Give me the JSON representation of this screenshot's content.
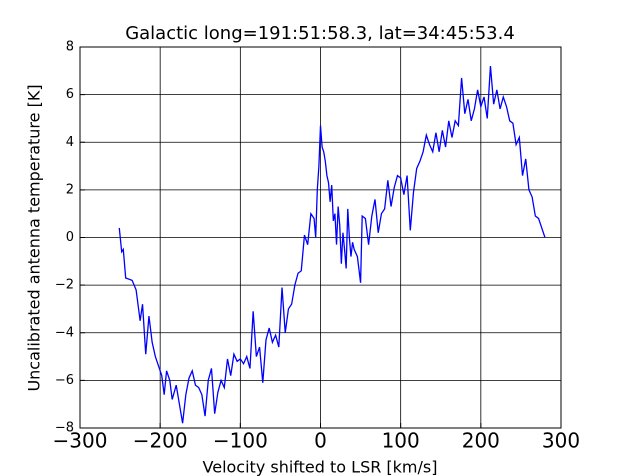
{
  "chart_data": {
    "type": "line",
    "title": "Galactic long=191:51:58.3, lat=34:45:53.4",
    "x_label": "Velocity shifted to LSR [km/s]",
    "y_label": "Uncalibrated antenna temperature [K]",
    "xlim": [
      -300,
      300
    ],
    "ylim": [
      -8,
      8
    ],
    "xticks": [
      {
        "value": -300,
        "label": "−300"
      },
      {
        "value": -200,
        "label": "−200"
      },
      {
        "value": -100,
        "label": "−100"
      },
      0,
      100,
      200,
      300
    ],
    "yticks": [
      {
        "value": -8,
        "label": "−8"
      },
      {
        "value": -6,
        "label": "−6"
      },
      {
        "value": -4,
        "label": "−4"
      },
      {
        "value": -2,
        "label": "−2"
      },
      0,
      2,
      4,
      6,
      8
    ],
    "grid": true,
    "series": [
      {
        "color": "#0000ff",
        "x": [
          -251,
          -248,
          -246,
          -243,
          -235,
          -230,
          -225,
          -222,
          -218,
          -214,
          -210,
          -206,
          -202,
          -198,
          -195,
          -192,
          -188,
          -185,
          -180,
          -176,
          -172,
          -168,
          -164,
          -160,
          -156,
          -152,
          -148,
          -144,
          -140,
          -136,
          -132,
          -128,
          -124,
          -120,
          -116,
          -112,
          -108,
          -104,
          -100,
          -96,
          -92,
          -88,
          -84,
          -80,
          -76,
          -72,
          -68,
          -64,
          -60,
          -56,
          -52,
          -48,
          -44,
          -40,
          -36,
          -32,
          -28,
          -24,
          -20,
          -16,
          -12,
          -8,
          -6,
          -4,
          -2,
          0,
          2,
          4,
          6,
          8,
          10,
          12,
          14,
          16,
          18,
          20,
          22,
          24,
          26,
          28,
          30,
          32,
          34,
          36,
          38,
          40,
          42,
          46,
          50,
          52,
          56,
          60,
          64,
          68,
          72,
          76,
          80,
          84,
          88,
          92,
          96,
          100,
          104,
          108,
          112,
          116,
          120,
          124,
          128,
          132,
          136,
          140,
          144,
          148,
          152,
          156,
          160,
          164,
          168,
          172,
          176,
          180,
          184,
          188,
          192,
          196,
          200,
          204,
          208,
          212,
          216,
          220,
          224,
          228,
          232,
          236,
          240,
          244,
          248,
          252,
          256,
          260,
          264,
          268,
          272,
          276,
          280
        ],
        "values": [
          0.4,
          -0.6,
          -0.5,
          -1.7,
          -1.8,
          -2.2,
          -3.5,
          -2.8,
          -4.9,
          -3.3,
          -4.4,
          -5.0,
          -5.4,
          -5.8,
          -6.6,
          -5.6,
          -6.0,
          -6.8,
          -6.2,
          -7.0,
          -7.8,
          -6.6,
          -5.9,
          -5.6,
          -6.2,
          -6.3,
          -6.6,
          -7.5,
          -6.0,
          -5.5,
          -7.4,
          -6.5,
          -6.0,
          -6.3,
          -5.1,
          -5.8,
          -4.9,
          -5.2,
          -5.1,
          -5.3,
          -5.0,
          -5.5,
          -3.1,
          -5.0,
          -4.6,
          -6.1,
          -4.3,
          -3.8,
          -4.4,
          -4.1,
          -4.6,
          -2.1,
          -4.0,
          -3.0,
          -2.8,
          -2.0,
          -1.5,
          -1.4,
          0.1,
          -0.3,
          1.0,
          0.8,
          0.0,
          2.0,
          3.0,
          4.7,
          3.8,
          3.6,
          3.2,
          2.6,
          2.3,
          1.5,
          2.2,
          0.7,
          1.0,
          -0.3,
          1.3,
          0.5,
          -1.1,
          0.2,
          -0.5,
          -1.3,
          1.2,
          0.0,
          -0.8,
          -0.2,
          -0.5,
          -0.8,
          -1.9,
          0.9,
          0.8,
          -0.3,
          0.9,
          1.6,
          0.2,
          1.0,
          1.2,
          2.4,
          1.3,
          2.1,
          2.6,
          2.5,
          1.8,
          2.6,
          0.3,
          1.9,
          2.9,
          3.2,
          3.6,
          4.3,
          3.9,
          3.6,
          4.4,
          3.6,
          4.5,
          3.8,
          4.9,
          4.2,
          4.9,
          4.7,
          6.7,
          5.2,
          5.8,
          4.9,
          5.4,
          6.2,
          5.5,
          5.9,
          5.0,
          7.2,
          5.6,
          6.2,
          5.4,
          5.9,
          5.5,
          4.9,
          4.8,
          3.9,
          4.2,
          2.6,
          3.3,
          2.0,
          1.7,
          0.9,
          0.8,
          0.4,
          0.0
        ]
      }
    ]
  }
}
